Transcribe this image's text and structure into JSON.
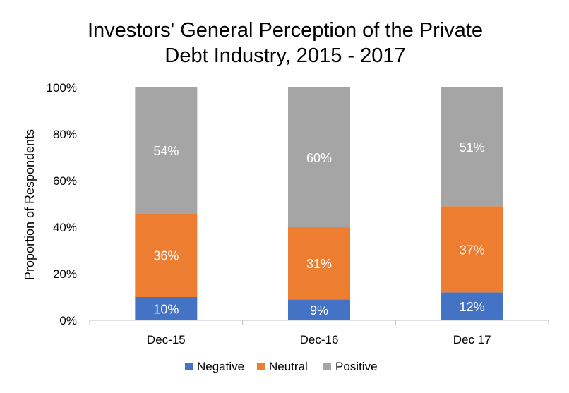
{
  "chart_data": {
    "type": "bar",
    "stacked": true,
    "title_lines": [
      "Investors' General Perception of the Private",
      "Debt Industry, 2015 - 2017"
    ],
    "xlabel": "",
    "ylabel": "Proportion of Respondents",
    "categories": [
      "Dec-15",
      "Dec-16",
      "Dec 17"
    ],
    "ylim": [
      0,
      100
    ],
    "yticks": [
      "0%",
      "20%",
      "40%",
      "60%",
      "80%",
      "100%"
    ],
    "series": [
      {
        "name": "Negative",
        "color": "#4472C4",
        "values": [
          10,
          9,
          12
        ],
        "labels": [
          "10%",
          "9%",
          "12%"
        ]
      },
      {
        "name": "Neutral",
        "color": "#ED7D31",
        "values": [
          36,
          31,
          37
        ],
        "labels": [
          "36%",
          "31%",
          "37%"
        ]
      },
      {
        "name": "Positive",
        "color": "#A5A5A5",
        "values": [
          54,
          60,
          51
        ],
        "labels": [
          "54%",
          "60%",
          "51%"
        ]
      }
    ],
    "grid": false,
    "legend_position": "bottom",
    "label_color": "#ffffff",
    "text_color": "#000000",
    "axis_color": "#bfbfbf"
  }
}
